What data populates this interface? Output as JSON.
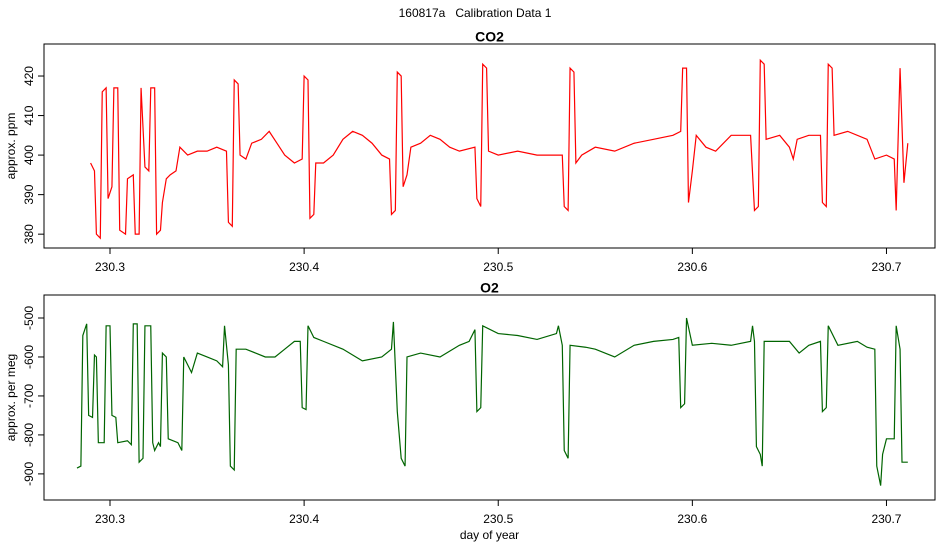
{
  "title": "160817a   Calibration Data 1",
  "chart_data": [
    {
      "type": "line",
      "title": "CO2",
      "ylabel": "approx. ppm",
      "color": "#ff0000",
      "x": [
        230.29,
        230.292,
        230.293,
        230.295,
        230.296,
        230.298,
        230.299,
        230.301,
        230.302,
        230.304,
        230.305,
        230.308,
        230.309,
        230.312,
        230.313,
        230.315,
        230.316,
        230.318,
        230.32,
        230.321,
        230.323,
        230.324,
        230.326,
        230.327,
        230.329,
        230.331,
        230.334,
        230.336,
        230.34,
        230.345,
        230.35,
        230.355,
        230.36,
        230.361,
        230.363,
        230.364,
        230.366,
        230.367,
        230.37,
        230.373,
        230.378,
        230.382,
        230.386,
        230.39,
        230.395,
        230.399,
        230.4,
        230.402,
        230.403,
        230.405,
        230.406,
        230.41,
        230.415,
        230.42,
        230.425,
        230.43,
        230.435,
        230.44,
        230.444,
        230.445,
        230.447,
        230.448,
        230.45,
        230.451,
        230.453,
        230.455,
        230.46,
        230.465,
        230.47,
        230.475,
        230.48,
        230.488,
        230.489,
        230.491,
        230.492,
        230.494,
        230.495,
        230.5,
        230.51,
        230.52,
        230.53,
        230.533,
        230.534,
        230.536,
        230.537,
        230.539,
        230.54,
        230.543,
        230.55,
        230.56,
        230.57,
        230.58,
        230.59,
        230.594,
        230.595,
        230.597,
        230.598,
        230.6,
        230.602,
        230.607,
        230.612,
        230.62,
        230.63,
        230.632,
        230.634,
        230.635,
        230.637,
        230.638,
        230.645,
        230.65,
        230.652,
        230.654,
        230.66,
        230.666,
        230.667,
        230.669,
        230.67,
        230.672,
        230.673,
        230.68,
        230.69,
        230.694,
        230.7,
        230.704,
        230.705,
        230.707,
        230.709,
        230.711
      ],
      "values": [
        398,
        396,
        380,
        379,
        416,
        417,
        389,
        392,
        417,
        417,
        381,
        380,
        394,
        395,
        380,
        380,
        417,
        397,
        396,
        417,
        417,
        380,
        381,
        388,
        394,
        395,
        396,
        402,
        400,
        401,
        401,
        402,
        401,
        383,
        382,
        419,
        418,
        400,
        399,
        403,
        404,
        406,
        403,
        400,
        398,
        399,
        420,
        419,
        384,
        385,
        398,
        398,
        400,
        404,
        406,
        405,
        403,
        400,
        399,
        385,
        386,
        421,
        420,
        392,
        395,
        402,
        403,
        405,
        404,
        402,
        401,
        402,
        389,
        387,
        423,
        422,
        401,
        400,
        401,
        400,
        400,
        400,
        387,
        386,
        422,
        421,
        398,
        400,
        402,
        401,
        403,
        404,
        405,
        406,
        422,
        422,
        388,
        396,
        405,
        402,
        401,
        405,
        405,
        386,
        387,
        424,
        423,
        404,
        405,
        402,
        399,
        404,
        405,
        405,
        388,
        387,
        423,
        422,
        405,
        406,
        404,
        399,
        400,
        399,
        386,
        422,
        393,
        403
      ],
      "xlim": [
        230.266,
        230.725
      ],
      "ylim": [
        376.5,
        428.1
      ],
      "xticks": [
        230.3,
        230.4,
        230.5,
        230.6,
        230.7
      ],
      "yticks": [
        380,
        390,
        400,
        410,
        420
      ]
    },
    {
      "type": "line",
      "title": "O2",
      "ylabel": "approx. per meg",
      "xlabel": "day of year",
      "color": "#006400",
      "x": [
        230.283,
        230.285,
        230.286,
        230.288,
        230.289,
        230.291,
        230.292,
        230.293,
        230.294,
        230.297,
        230.298,
        230.3,
        230.301,
        230.303,
        230.304,
        230.309,
        230.311,
        230.312,
        230.314,
        230.315,
        230.317,
        230.318,
        230.321,
        230.322,
        230.323,
        230.325,
        230.326,
        230.327,
        230.329,
        230.33,
        230.335,
        230.337,
        230.338,
        230.342,
        230.345,
        230.35,
        230.355,
        230.358,
        230.359,
        230.361,
        230.362,
        230.364,
        230.365,
        230.37,
        230.375,
        230.38,
        230.385,
        230.39,
        230.395,
        230.398,
        230.399,
        230.401,
        230.402,
        230.405,
        230.41,
        230.42,
        230.43,
        230.44,
        230.445,
        230.446,
        230.448,
        230.45,
        230.452,
        230.453,
        230.46,
        230.47,
        230.48,
        230.485,
        230.488,
        230.489,
        230.491,
        230.492,
        230.5,
        230.51,
        230.52,
        230.53,
        230.531,
        230.533,
        230.534,
        230.536,
        230.537,
        230.545,
        230.55,
        230.56,
        230.57,
        230.58,
        230.59,
        230.593,
        230.594,
        230.596,
        230.597,
        230.6,
        230.61,
        230.62,
        230.63,
        230.631,
        230.632,
        230.633,
        230.635,
        230.636,
        230.637,
        230.645,
        230.65,
        230.655,
        230.66,
        230.666,
        230.667,
        230.669,
        230.67,
        230.675,
        230.685,
        230.69,
        230.694,
        230.695,
        230.697,
        230.698,
        230.7,
        230.704,
        230.705,
        230.707,
        230.708,
        230.711
      ],
      "values": [
        -885,
        -880,
        -545,
        -515,
        -750,
        -755,
        -595,
        -600,
        -820,
        -820,
        -520,
        -520,
        -750,
        -755,
        -820,
        -815,
        -825,
        -515,
        -515,
        -870,
        -860,
        -520,
        -520,
        -820,
        -840,
        -820,
        -830,
        -590,
        -600,
        -810,
        -820,
        -840,
        -600,
        -640,
        -590,
        -600,
        -610,
        -625,
        -520,
        -620,
        -880,
        -890,
        -580,
        -580,
        -590,
        -600,
        -600,
        -580,
        -560,
        -560,
        -730,
        -735,
        -520,
        -550,
        -560,
        -580,
        -610,
        -600,
        -580,
        -510,
        -740,
        -860,
        -880,
        -600,
        -590,
        -600,
        -570,
        -560,
        -530,
        -740,
        -730,
        -520,
        -540,
        -545,
        -555,
        -540,
        -520,
        -570,
        -840,
        -860,
        -570,
        -575,
        -580,
        -600,
        -570,
        -560,
        -555,
        -550,
        -730,
        -720,
        -500,
        -570,
        -565,
        -570,
        -560,
        -520,
        -560,
        -830,
        -850,
        -880,
        -560,
        -560,
        -560,
        -590,
        -570,
        -560,
        -740,
        -730,
        -520,
        -570,
        -560,
        -575,
        -580,
        -880,
        -930,
        -850,
        -810,
        -810,
        -520,
        -580,
        -870,
        -870
      ],
      "xlim": [
        230.266,
        230.725
      ],
      "ylim": [
        -967,
        -441
      ],
      "xticks": [
        230.3,
        230.4,
        230.5,
        230.6,
        230.7
      ],
      "yticks": [
        -900,
        -800,
        -700,
        -600,
        -500
      ]
    }
  ]
}
